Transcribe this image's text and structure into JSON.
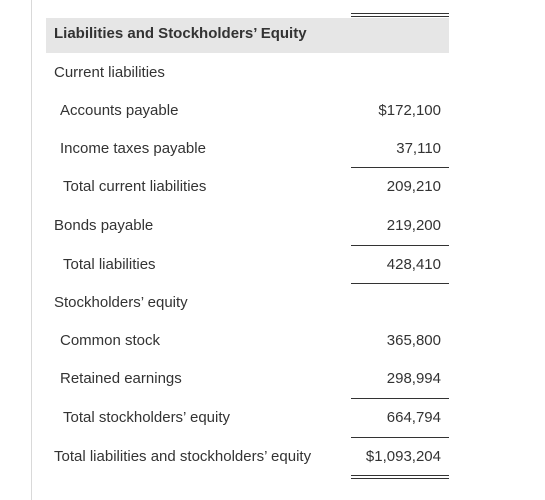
{
  "header": {
    "title": "Liabilities and Stockholders’ Equity"
  },
  "rows": [
    {
      "label": "Current liabilities",
      "amount": ""
    },
    {
      "label": "Accounts payable",
      "amount": "$172,100"
    },
    {
      "label": "Income taxes payable",
      "amount": "37,110"
    },
    {
      "label": "Total current liabilities",
      "amount": "209,210"
    },
    {
      "label": "Bonds payable",
      "amount": "219,200"
    },
    {
      "label": "Total liabilities",
      "amount": "428,410"
    },
    {
      "label": "Stockholders’ equity",
      "amount": ""
    },
    {
      "label": "Common stock",
      "amount": "365,800"
    },
    {
      "label": "Retained earnings",
      "amount": "298,994"
    },
    {
      "label": "Total stockholders’ equity",
      "amount": "664,794"
    },
    {
      "label": "Total liabilities and stockholders’ equity",
      "amount": "$1,093,204"
    }
  ]
}
